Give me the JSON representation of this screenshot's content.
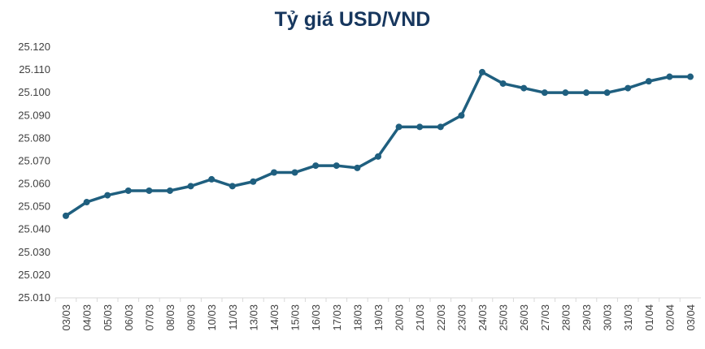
{
  "chart_data": {
    "type": "line",
    "title": "Tỷ giá USD/VND",
    "xlabel": "",
    "ylabel": "",
    "categories": [
      "03/03",
      "04/03",
      "05/03",
      "06/03",
      "07/03",
      "08/03",
      "09/03",
      "10/03",
      "11/03",
      "13/03",
      "14/03",
      "15/03",
      "16/03",
      "17/03",
      "18/03",
      "19/03",
      "20/03",
      "21/03",
      "22/03",
      "23/03",
      "24/03",
      "25/03",
      "26/03",
      "27/03",
      "28/03",
      "29/03",
      "30/03",
      "31/03",
      "01/04",
      "02/04",
      "03/04"
    ],
    "series": [
      {
        "values": [
          25.046,
          25.052,
          25.055,
          25.057,
          25.057,
          25.057,
          25.059,
          25.062,
          25.059,
          25.061,
          25.065,
          25.065,
          25.068,
          25.068,
          25.067,
          25.072,
          25.085,
          25.085,
          25.085,
          25.09,
          25.109,
          25.104,
          25.102,
          25.1,
          25.1,
          25.1,
          25.1,
          25.102,
          25.105,
          25.107,
          25.107
        ],
        "color": "#1f5f7f"
      }
    ],
    "ylim": [
      25.01,
      25.12
    ],
    "yticks": [
      "25.010",
      "25.020",
      "25.030",
      "25.040",
      "25.050",
      "25.060",
      "25.070",
      "25.080",
      "25.090",
      "25.100",
      "25.110",
      "25.120"
    ],
    "grid": false,
    "legend": "none"
  }
}
